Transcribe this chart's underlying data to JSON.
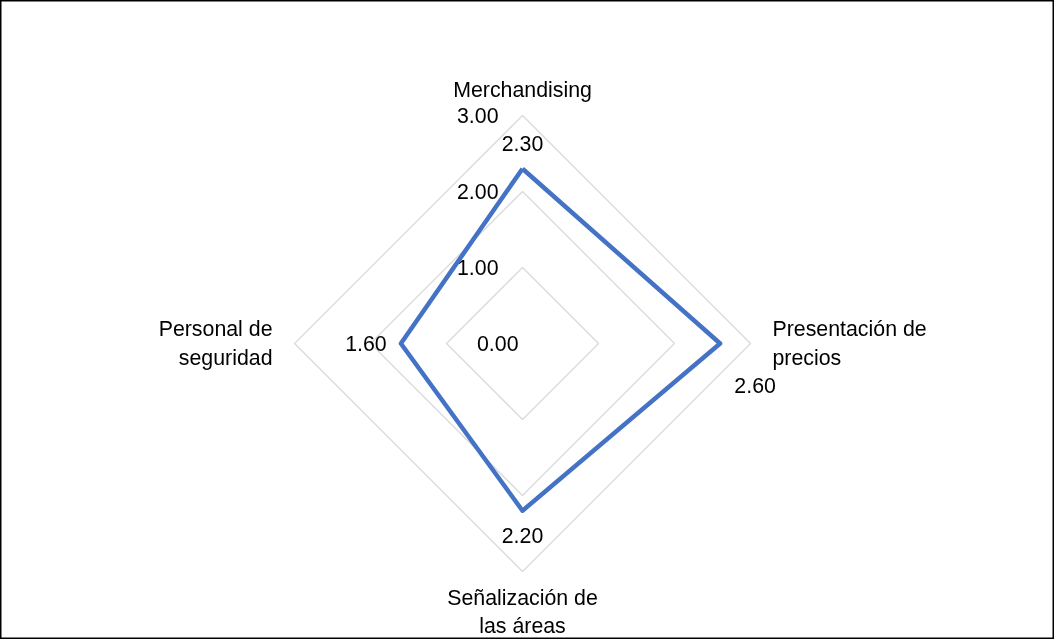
{
  "chart_data": {
    "type": "radar",
    "categories": [
      "Merchandising",
      "Presentación de precios",
      "Señalización de las áreas",
      "Personal de seguridad"
    ],
    "series": [
      {
        "color": "#4472c4",
        "values": [
          2.3,
          2.6,
          2.2,
          1.6
        ],
        "value_labels": [
          "2.30",
          "2.60",
          "2.20",
          "1.60"
        ]
      }
    ],
    "ylim": [
      0,
      3
    ],
    "yticks": [
      {
        "value": 0,
        "label": "0.00"
      },
      {
        "value": 1,
        "label": "1.00"
      },
      {
        "value": 2,
        "label": "2.00"
      },
      {
        "value": 3,
        "label": "3.00"
      }
    ],
    "grid": true
  }
}
